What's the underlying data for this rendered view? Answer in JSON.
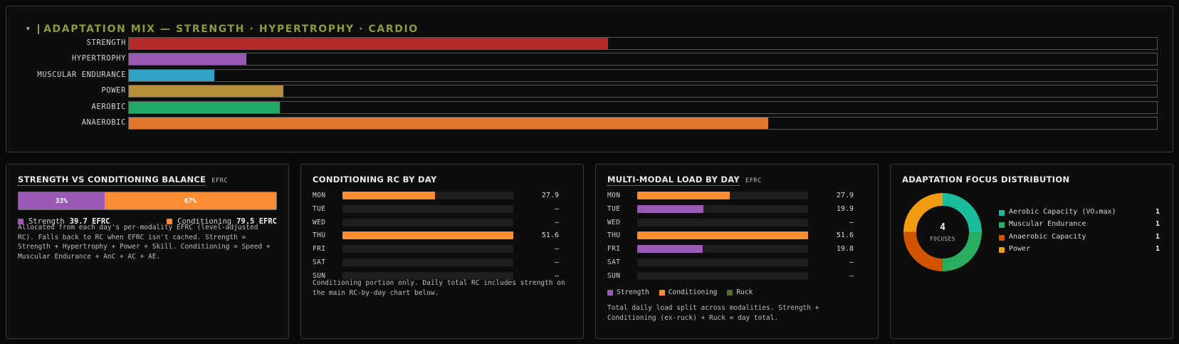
{
  "mix": {
    "caret": "▾",
    "title": "ADAPTATION MIX — STRENGTH · HYPERTROPHY · CARDIO"
  },
  "balance": {
    "title": "STRENGTH VS CONDITIONING BALANCE",
    "subtitle": "EFRC",
    "strength_pct_label": "33%",
    "conditioning_pct_label": "67%",
    "strength_label": "Strength",
    "strength_value": "39.7 EFRC",
    "conditioning_label": "Conditioning",
    "conditioning_value": "79.5 EFRC",
    "note": "Allocated from each day's per-modality EFRC (level-adjusted RC). Falls back to RC when EFRC isn't cached. Strength = Strength + Hypertrophy + Power + Skill. Conditioning = Speed + Muscular Endurance + AnC + AC + AE."
  },
  "conditioning": {
    "title": "CONDITIONING RC BY DAY",
    "note": "Conditioning portion only. Daily total RC includes strength on the main RC-by-day chart below."
  },
  "multimodal": {
    "title": "MULTI-MODAL LOAD BY DAY",
    "subtitle": "EFRC",
    "legend": [
      "Strength",
      "Conditioning",
      "Ruck"
    ],
    "note": "Total daily load split across modalities. Strength + Conditioning (ex-ruck) + Ruck = day total."
  },
  "focus": {
    "title": "ADAPTATION FOCUS DISTRIBUTION",
    "center_value": "4",
    "center_label": "FOCUSES"
  },
  "colors": {
    "strength": "#b22a2a",
    "hypertrophy": "#9b59b6",
    "muscular_endurance": "#2ea3c4",
    "power": "#b98e3a",
    "aerobic": "#23a866",
    "anaerobic": "#e0772c",
    "bal_strength": "#9b59b6",
    "bal_conditioning": "#fb8c32",
    "mm_strength": "#9b59b6",
    "mm_conditioning": "#fb8c32",
    "mm_ruck": "#556b2f",
    "focus_aerobic": "#1abc9c",
    "focus_musc_end": "#27ae60",
    "focus_anaerobic": "#d35400",
    "focus_power": "#f39c12"
  },
  "chart_data": [
    {
      "type": "bar",
      "orientation": "horizontal",
      "title": "ADAPTATION MIX — STRENGTH · HYPERTROPHY · CARDIO",
      "categories": [
        "STRENGTH",
        "HYPERTROPHY",
        "MUSCULAR ENDURANCE",
        "POWER",
        "AEROBIC",
        "ANAEROBIC"
      ],
      "values": [
        46.6,
        11.4,
        8.3,
        15.0,
        14.7,
        62.2
      ],
      "xlim": [
        0,
        100
      ]
    },
    {
      "type": "bar",
      "orientation": "horizontal",
      "stacked": true,
      "title": "STRENGTH VS CONDITIONING BALANCE",
      "series": [
        {
          "name": "Strength",
          "values": [
            39.7
          ]
        },
        {
          "name": "Conditioning",
          "values": [
            79.5
          ]
        }
      ]
    },
    {
      "type": "bar",
      "orientation": "horizontal",
      "title": "CONDITIONING RC BY DAY",
      "categories": [
        "MON",
        "TUE",
        "WED",
        "THU",
        "FRI",
        "SAT",
        "SUN"
      ],
      "values": [
        27.9,
        null,
        null,
        51.6,
        null,
        null,
        null
      ],
      "value_labels": [
        "27.9",
        "—",
        "—",
        "51.6",
        "—",
        "—",
        "—"
      ],
      "xlim": [
        0,
        51.6
      ]
    },
    {
      "type": "bar",
      "orientation": "horizontal",
      "title": "MULTI-MODAL LOAD BY DAY",
      "categories": [
        "MON",
        "TUE",
        "WED",
        "THU",
        "FRI",
        "SAT",
        "SUN"
      ],
      "series": [
        {
          "name": "Strength",
          "values": [
            0,
            19.9,
            0,
            0,
            19.8,
            0,
            0
          ]
        },
        {
          "name": "Conditioning",
          "values": [
            27.9,
            0,
            0,
            51.6,
            0,
            0,
            0
          ]
        },
        {
          "name": "Ruck",
          "values": [
            0,
            0,
            0,
            0,
            0,
            0,
            0
          ]
        }
      ],
      "value_labels": [
        "27.9",
        "19.9",
        "—",
        "51.6",
        "19.8",
        "—",
        "—"
      ],
      "xlim": [
        0,
        51.6
      ],
      "legend": "bottom"
    },
    {
      "type": "pie",
      "title": "ADAPTATION FOCUS DISTRIBUTION",
      "categories": [
        "Aerobic Capacity (VO₂max)",
        "Muscular Endurance",
        "Anaerobic Capacity",
        "Power"
      ],
      "values": [
        1,
        1,
        1,
        1
      ]
    }
  ]
}
